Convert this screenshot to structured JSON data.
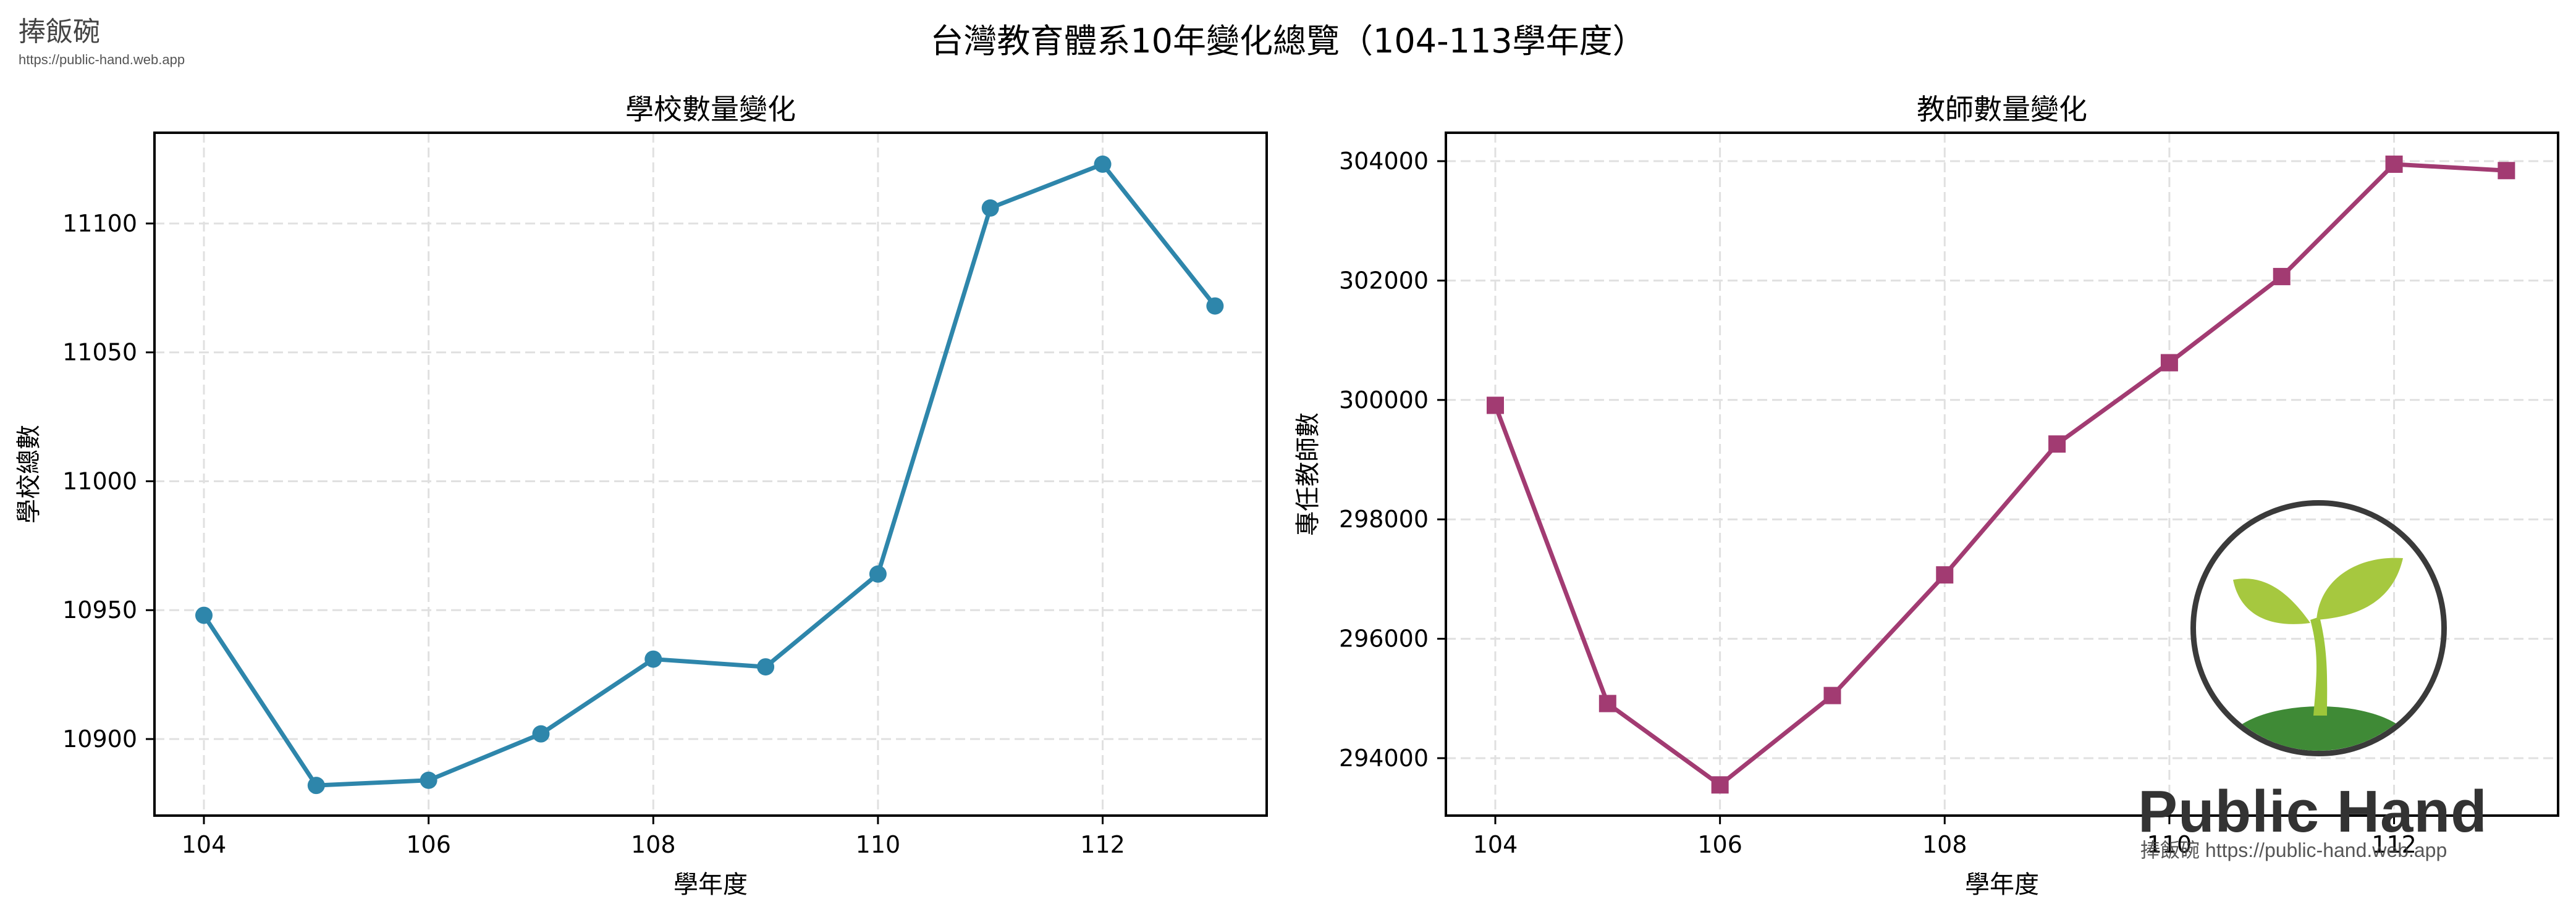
{
  "brand": {
    "name": "捧飯碗",
    "url": "https://public-hand.web.app"
  },
  "suptitle": "台灣教育體系10年變化總覽（104-113學年度）",
  "watermark": {
    "title": "Public Hand",
    "subtitle": "捧飯碗 https://public-hand.web.app"
  },
  "colors": {
    "schools": "#2e86ab",
    "teachers": "#a23b72",
    "grid": "#e0e0e0"
  },
  "chart_data": [
    {
      "type": "line",
      "title": "學校數量變化",
      "xlabel": "學年度",
      "ylabel": "學校總數",
      "x": [
        104,
        105,
        106,
        107,
        108,
        109,
        110,
        111,
        112,
        113
      ],
      "series": [
        {
          "name": "學校總數",
          "values": [
            10948,
            10882,
            10884,
            10902,
            10931,
            10928,
            10964,
            11106,
            11123,
            11068
          ],
          "marker": "circle",
          "color": "#2e86ab"
        }
      ],
      "xticks": [
        104,
        106,
        108,
        110,
        112
      ],
      "yticks": [
        10900,
        10950,
        11000,
        11050,
        11100
      ],
      "xlim": [
        103.56,
        113.46
      ],
      "ylim": [
        10870.3,
        11135.2
      ],
      "grid": true
    },
    {
      "type": "line",
      "title": "教師數量變化",
      "xlabel": "學年度",
      "ylabel": "專任教師數",
      "x": [
        104,
        105,
        106,
        107,
        108,
        109,
        110,
        111,
        112,
        113
      ],
      "series": [
        {
          "name": "專任教師數",
          "values": [
            299910,
            294915,
            293552,
            295049,
            297070,
            299262,
            300624,
            302067,
            303949,
            303842
          ],
          "marker": "square",
          "color": "#a23b72"
        }
      ],
      "xticks": [
        104,
        106,
        108,
        110,
        112
      ],
      "yticks": [
        294000,
        296000,
        298000,
        300000,
        302000,
        304000
      ],
      "xlim": [
        103.56,
        113.46
      ],
      "ylim": [
        293038,
        304476
      ],
      "grid": true
    }
  ]
}
